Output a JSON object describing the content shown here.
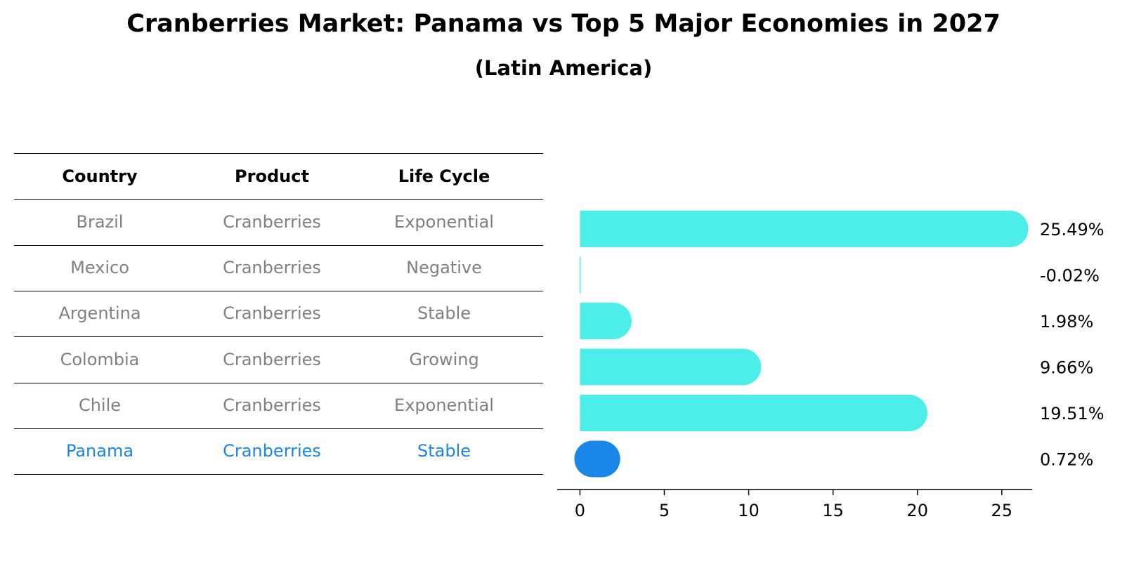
{
  "title": "Cranberries Market: Panama vs Top 5 Major Economies in 2027",
  "subtitle": "(Latin America)",
  "table": {
    "headers": [
      "Country",
      "Product",
      "Life Cycle"
    ],
    "rows": [
      {
        "country": "Brazil",
        "product": "Cranberries",
        "life_cycle": "Exponential"
      },
      {
        "country": "Mexico",
        "product": "Cranberries",
        "life_cycle": "Negative"
      },
      {
        "country": "Argentina",
        "product": "Cranberries",
        "life_cycle": "Stable"
      },
      {
        "country": "Colombia",
        "product": "Cranberries",
        "life_cycle": "Growing"
      },
      {
        "country": "Chile",
        "product": "Cranberries",
        "life_cycle": "Exponential"
      },
      {
        "country": "Panama",
        "product": "Cranberries",
        "life_cycle": "Stable"
      }
    ]
  },
  "colors": {
    "bar": "#4deeea",
    "highlight": "#1a86e8",
    "row_text": "#808080"
  },
  "chart_data": {
    "type": "bar",
    "orientation": "horizontal",
    "categories": [
      "Brazil",
      "Mexico",
      "Argentina",
      "Colombia",
      "Chile",
      "Panama"
    ],
    "values": [
      25.49,
      -0.02,
      1.98,
      9.66,
      19.51,
      0.72
    ],
    "value_labels": [
      "25.49%",
      "-0.02%",
      "1.98%",
      "9.66%",
      "19.51%",
      "0.72%"
    ],
    "highlight": "Panama",
    "xlim": [
      -1.35,
      26.8
    ],
    "xticks": [
      0,
      5,
      10,
      15,
      20,
      25
    ],
    "xlabel": "",
    "ylabel": "",
    "grid": false
  }
}
